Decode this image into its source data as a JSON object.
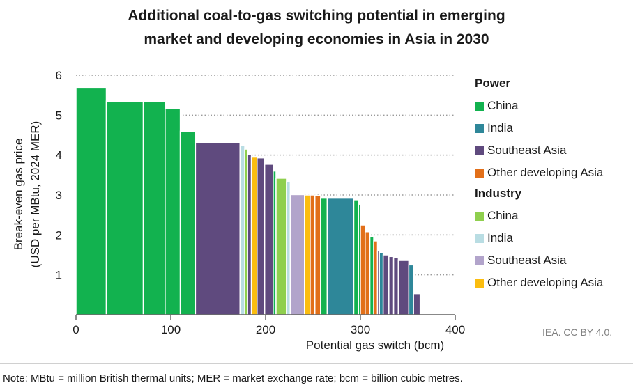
{
  "title_line1": "Additional coal-to-gas switching potential in emerging",
  "title_line2": "market and developing economies in Asia in 2030",
  "credit": "IEA. CC BY 4.0.",
  "note": "Note: MBtu = million British thermal units; MER = market exchange rate; bcm = billion cubic metres.",
  "legend": {
    "power_heading": "Power",
    "industry_heading": "Industry",
    "items": [
      {
        "label": "China",
        "color": "#12b24f"
      },
      {
        "label": "India",
        "color": "#2e8799"
      },
      {
        "label": "Southeast Asia",
        "color": "#5f4a7e"
      },
      {
        "label": "Other developing Asia",
        "color": "#e26f19"
      },
      {
        "label": "China",
        "color": "#8fcf4e"
      },
      {
        "label": "India",
        "color": "#b9dde3"
      },
      {
        "label": "Southeast Asia",
        "color": "#b2a4cb"
      },
      {
        "label": "Other developing Asia",
        "color": "#fbbd10"
      }
    ]
  },
  "chart_data": {
    "type": "bar",
    "subtype": "supply-curve (variable-width step bars)",
    "xlabel": "Potential gas switch (bcm)",
    "ylabel_line1": "Break-even gas price",
    "ylabel_line2": "(USD per MBtu, 2024 MER)",
    "xlim": [
      0,
      400
    ],
    "ylim": [
      0,
      6
    ],
    "xticks": [
      "0",
      "100",
      "200",
      "300",
      "400"
    ],
    "yticks": [
      "1",
      "2",
      "3",
      "4",
      "5",
      "6"
    ],
    "grid": "horizontal dotted",
    "legend_position": "right",
    "series": [
      {
        "name": "Power - China",
        "color": "#12b24f"
      },
      {
        "name": "Power - India",
        "color": "#2e8799"
      },
      {
        "name": "Power - Southeast Asia",
        "color": "#5f4a7e"
      },
      {
        "name": "Power - Other developing Asia",
        "color": "#e26f19"
      },
      {
        "name": "Industry - China",
        "color": "#8fcf4e"
      },
      {
        "name": "Industry - India",
        "color": "#b9dde3"
      },
      {
        "name": "Industry - Southeast Asia",
        "color": "#b2a4cb"
      },
      {
        "name": "Industry - Other developing Asia",
        "color": "#fbbd10"
      }
    ],
    "bars": [
      {
        "x0": 0,
        "x1": 32,
        "y": 5.68,
        "series": 0
      },
      {
        "x0": 32,
        "x1": 71,
        "y": 5.35,
        "series": 0
      },
      {
        "x0": 71,
        "x1": 94,
        "y": 5.35,
        "series": 0
      },
      {
        "x0": 94,
        "x1": 110,
        "y": 5.17,
        "series": 0
      },
      {
        "x0": 110,
        "x1": 126,
        "y": 4.6,
        "series": 0
      },
      {
        "x0": 126,
        "x1": 173,
        "y": 4.32,
        "series": 2
      },
      {
        "x0": 173,
        "x1": 178,
        "y": 4.25,
        "series": 5
      },
      {
        "x0": 178,
        "x1": 181,
        "y": 4.15,
        "series": 4
      },
      {
        "x0": 181,
        "x1": 185,
        "y": 4.02,
        "series": 2
      },
      {
        "x0": 185,
        "x1": 191,
        "y": 3.95,
        "series": 7
      },
      {
        "x0": 191,
        "x1": 199,
        "y": 3.93,
        "series": 2
      },
      {
        "x0": 199,
        "x1": 208,
        "y": 3.77,
        "series": 2
      },
      {
        "x0": 208,
        "x1": 211,
        "y": 3.6,
        "series": 0
      },
      {
        "x0": 211,
        "x1": 222,
        "y": 3.42,
        "series": 4
      },
      {
        "x0": 222,
        "x1": 226,
        "y": 3.33,
        "series": 5
      },
      {
        "x0": 226,
        "x1": 241,
        "y": 3.01,
        "series": 6
      },
      {
        "x0": 241,
        "x1": 247,
        "y": 3.0,
        "series": 7
      },
      {
        "x0": 247,
        "x1": 252,
        "y": 3.0,
        "series": 3
      },
      {
        "x0": 252,
        "x1": 258,
        "y": 2.99,
        "series": 3
      },
      {
        "x0": 258,
        "x1": 265,
        "y": 2.92,
        "series": 0
      },
      {
        "x0": 265,
        "x1": 293,
        "y": 2.92,
        "series": 1
      },
      {
        "x0": 293,
        "x1": 298,
        "y": 2.88,
        "series": 0
      },
      {
        "x0": 298,
        "x1": 300,
        "y": 2.77,
        "series": 0
      },
      {
        "x0": 300,
        "x1": 305,
        "y": 2.25,
        "series": 3
      },
      {
        "x0": 305,
        "x1": 310,
        "y": 2.08,
        "series": 3
      },
      {
        "x0": 310,
        "x1": 314,
        "y": 1.96,
        "series": 0
      },
      {
        "x0": 314,
        "x1": 318,
        "y": 1.85,
        "series": 3
      },
      {
        "x0": 318,
        "x1": 320,
        "y": 1.6,
        "series": 2
      },
      {
        "x0": 320,
        "x1": 324,
        "y": 1.56,
        "series": 1
      },
      {
        "x0": 324,
        "x1": 330,
        "y": 1.5,
        "series": 2
      },
      {
        "x0": 330,
        "x1": 335,
        "y": 1.46,
        "series": 2
      },
      {
        "x0": 335,
        "x1": 340,
        "y": 1.43,
        "series": 2
      },
      {
        "x0": 340,
        "x1": 351,
        "y": 1.36,
        "series": 2
      },
      {
        "x0": 351,
        "x1": 356,
        "y": 1.25,
        "series": 1
      },
      {
        "x0": 356,
        "x1": 363,
        "y": 0.53,
        "series": 2
      }
    ]
  }
}
